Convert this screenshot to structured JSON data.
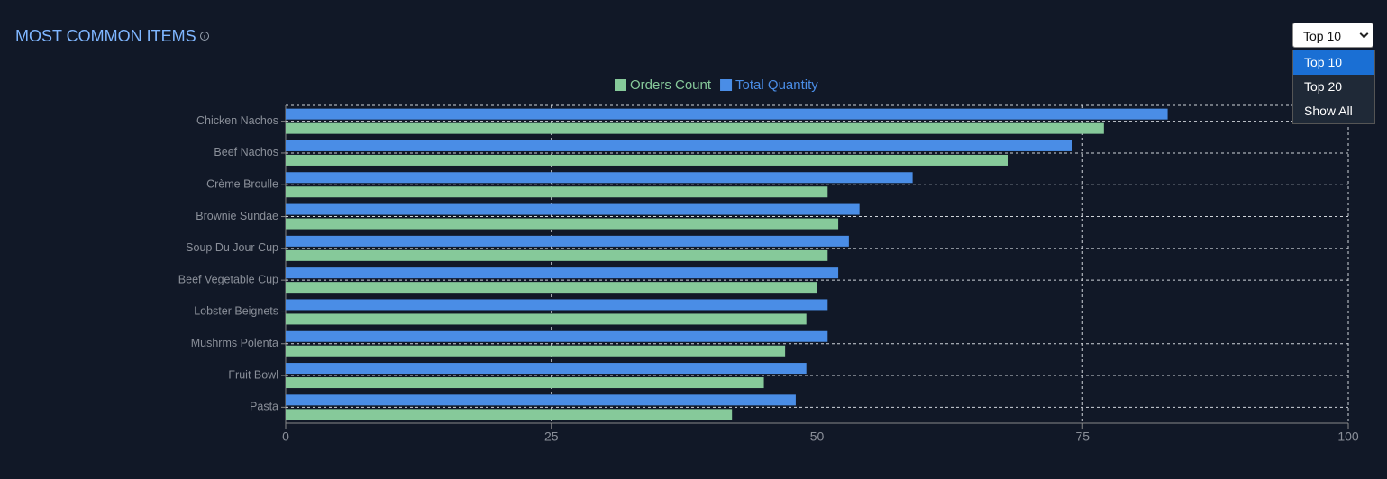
{
  "chart_data": {
    "type": "hbar",
    "title": "MOST COMMON ITEMS",
    "categories": [
      "Chicken Nachos",
      "Beef Nachos",
      "Crème Broulle",
      "Brownie Sundae",
      "Soup Du Jour Cup",
      "Beef Vegetable Cup",
      "Lobster Beignets",
      "Mushrms Polenta",
      "Fruit Bowl",
      "Pasta"
    ],
    "series": [
      {
        "name": "Orders Count",
        "color": "#86c99a",
        "values": [
          77,
          68,
          51,
          52,
          51,
          50,
          49,
          47,
          45,
          42
        ]
      },
      {
        "name": "Total Quantity",
        "color": "#4a8de6",
        "values": [
          83,
          74,
          59,
          54,
          53,
          52,
          51,
          51,
          49,
          48
        ]
      }
    ],
    "xlim": [
      0,
      100
    ],
    "xticks": [
      0,
      25,
      50,
      75,
      100
    ],
    "grid": true,
    "legend": "top"
  },
  "dropdown": {
    "selected": "Top 10",
    "options": [
      "Top 10",
      "Top 20",
      "Show All"
    ]
  }
}
